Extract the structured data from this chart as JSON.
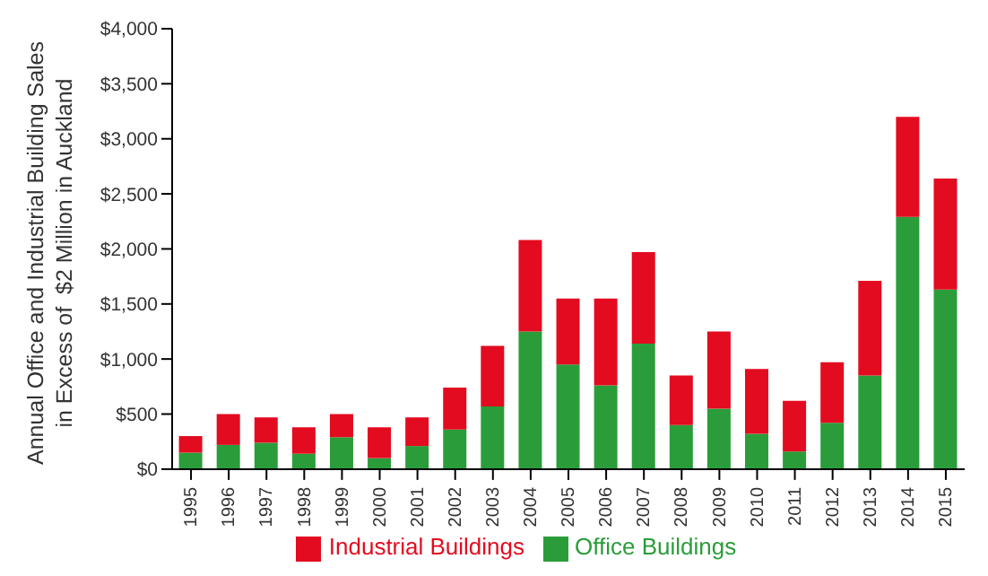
{
  "chart_data": {
    "type": "bar",
    "ylabel": "Annual Office and Industrial Building Sales\nin Excess of  $2 Million in Auckland",
    "categories": [
      "1995",
      "1996",
      "1997",
      "1998",
      "1999",
      "2000",
      "2001",
      "2002",
      "2003",
      "2004",
      "2005",
      "2006",
      "2007",
      "2008",
      "2009",
      "2010",
      "2011",
      "2012",
      "2013",
      "2014",
      "2015"
    ],
    "stacked": true,
    "series": [
      {
        "name": "Office Buildings",
        "color": "#2a9d3a",
        "values": [
          150,
          220,
          240,
          140,
          290,
          100,
          210,
          360,
          570,
          1250,
          950,
          760,
          1140,
          400,
          550,
          320,
          160,
          420,
          850,
          2290,
          1630
        ]
      },
      {
        "name": "Industrial Buildings",
        "color": "#e30b1f",
        "values": [
          150,
          280,
          230,
          240,
          210,
          280,
          260,
          380,
          550,
          830,
          600,
          790,
          830,
          450,
          700,
          590,
          460,
          550,
          860,
          910,
          1010
        ]
      }
    ],
    "ylim": [
      0,
      4000
    ],
    "yticks": [
      {
        "value": 0,
        "label": "$0"
      },
      {
        "value": 500,
        "label": "$500"
      },
      {
        "value": 1000,
        "label": "$1,000"
      },
      {
        "value": 1500,
        "label": "$1,500"
      },
      {
        "value": 2000,
        "label": "$2,000"
      },
      {
        "value": 2500,
        "label": "$2,500"
      },
      {
        "value": 3000,
        "label": "$3,000"
      },
      {
        "value": 3500,
        "label": "$3,500"
      },
      {
        "value": 4000,
        "label": "$4,000"
      }
    ],
    "grid": false,
    "legend": "bottom"
  }
}
